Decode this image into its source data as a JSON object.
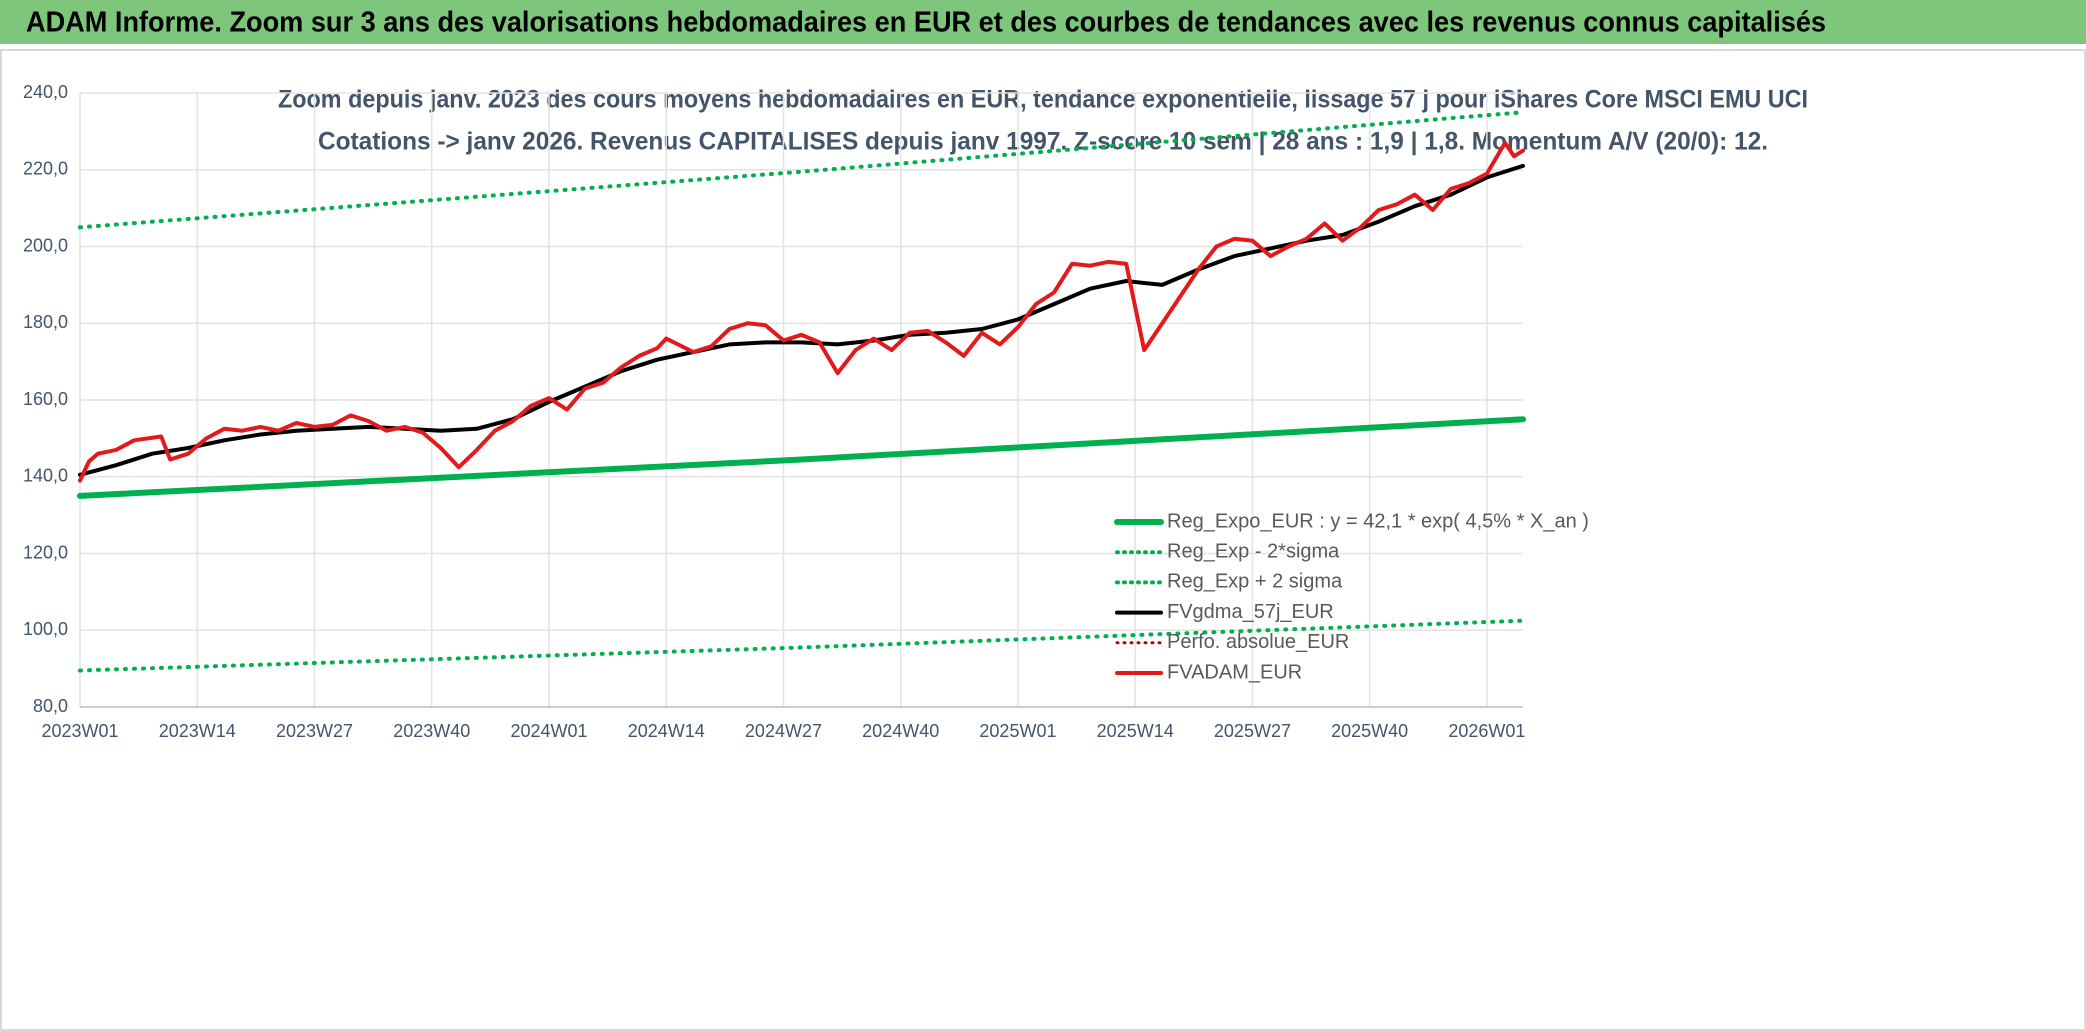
{
  "header": {
    "title": "ADAM Informe. Zoom sur 3 ans des valorisations hebdomadaires en EUR et des courbes de tendances avec les revenus connus capitalisés"
  },
  "chart_data": {
    "type": "line",
    "title": "Zoom depuis janv. 2023 des cours moyens hebdomadaires en EUR, tendance exponentielle, lissage 57 j pour iShares Core MSCI EMU UCI",
    "subtitle": "Cotations -> janv 2026. Revenus CAPITALISES depuis janv 1997. Z-score 10 sem | 28 ans : 1,9 | 1,8. Momentum A/V (20/0): 12.",
    "xlim": [
      0,
      160
    ],
    "xticks": [
      {
        "value": 0,
        "label": "2023W01"
      },
      {
        "value": 13,
        "label": "2023W14"
      },
      {
        "value": 26,
        "label": "2023W27"
      },
      {
        "value": 39,
        "label": "2023W40"
      },
      {
        "value": 52,
        "label": "2024W01"
      },
      {
        "value": 65,
        "label": "2024W14"
      },
      {
        "value": 78,
        "label": "2024W27"
      },
      {
        "value": 91,
        "label": "2024W40"
      },
      {
        "value": 104,
        "label": "2025W01"
      },
      {
        "value": 117,
        "label": "2025W14"
      },
      {
        "value": 130,
        "label": "2025W27"
      },
      {
        "value": 143,
        "label": "2025W40"
      },
      {
        "value": 156,
        "label": "2026W01"
      }
    ],
    "ylim": [
      80,
      240
    ],
    "yticks": [
      {
        "value": 80,
        "label": "80,0"
      },
      {
        "value": 100,
        "label": "100,0"
      },
      {
        "value": 120,
        "label": "120,0"
      },
      {
        "value": 140,
        "label": "140,0"
      },
      {
        "value": 160,
        "label": "160,0"
      },
      {
        "value": 180,
        "label": "180,0"
      },
      {
        "value": 200,
        "label": "200,0"
      },
      {
        "value": 220,
        "label": "220,0"
      },
      {
        "value": 240,
        "label": "240,0"
      }
    ],
    "grid": true,
    "legend": "lower right",
    "series": [
      {
        "name": "Reg_Expo_EUR : y = 42,1 * exp( 4,5% *  X_an )",
        "color": "#00b050",
        "style": "solid",
        "width": 6,
        "x": [
          0,
          80,
          160
        ],
        "values": [
          135,
          144.5,
          155
        ]
      },
      {
        "name": "Reg_Exp - 2*sigma",
        "color": "#00b050",
        "style": "dotted",
        "width": 4,
        "x": [
          0,
          80,
          160
        ],
        "values": [
          89.5,
          95.5,
          102.5
        ]
      },
      {
        "name": "Reg_Exp + 2 sigma",
        "color": "#00b050",
        "style": "dotted",
        "width": 4,
        "x": [
          0,
          80,
          160
        ],
        "values": [
          205,
          219.5,
          235
        ]
      },
      {
        "name": "FVgdma_57j_EUR",
        "color": "#000000",
        "style": "solid",
        "width": 4,
        "x": [
          0,
          4,
          8,
          12,
          16,
          20,
          24,
          28,
          32,
          36,
          40,
          44,
          48,
          52,
          56,
          60,
          64,
          68,
          72,
          76,
          80,
          84,
          88,
          92,
          96,
          100,
          104,
          108,
          112,
          116,
          118,
          120,
          124,
          128,
          132,
          136,
          140,
          144,
          148,
          152,
          156,
          160
        ],
        "values": [
          140.5,
          143,
          146,
          147.5,
          149.5,
          151,
          152,
          152.5,
          153,
          152.5,
          152,
          152.5,
          155,
          159.5,
          163.5,
          167.5,
          170.5,
          172.5,
          174.5,
          175,
          175,
          174.5,
          175.5,
          177,
          177.5,
          178.5,
          181,
          185,
          189,
          191,
          190.5,
          190,
          194,
          197.5,
          199.5,
          201.5,
          203,
          206.5,
          210.5,
          213.5,
          218,
          221
        ]
      },
      {
        "name": "Perfo. absolue_EUR",
        "color": "#c00000",
        "style": "dotted",
        "width": 3,
        "x": [],
        "values": []
      },
      {
        "name": "FVADAM_EUR",
        "color": "#e31a1c",
        "style": "solid",
        "width": 4,
        "x": [
          0,
          1,
          2,
          4,
          6,
          9,
          10,
          12,
          14,
          16,
          18,
          20,
          22,
          24,
          26,
          28,
          30,
          32,
          34,
          36,
          38,
          40,
          42,
          44,
          46,
          48,
          50,
          52,
          54,
          56,
          58,
          60,
          62,
          64,
          65,
          68,
          70,
          72,
          74,
          76,
          78,
          80,
          82,
          84,
          86,
          88,
          90,
          92,
          94,
          96,
          98,
          100,
          102,
          104,
          106,
          108,
          110,
          112,
          114,
          116,
          118,
          120,
          122,
          124,
          126,
          128,
          130,
          132,
          134,
          136,
          138,
          140,
          142,
          144,
          146,
          148,
          150,
          152,
          154,
          156,
          158,
          159,
          160
        ],
        "values": [
          139,
          144,
          146,
          147,
          149.5,
          150.5,
          144.5,
          146,
          150,
          152.5,
          152,
          153,
          152,
          154,
          153,
          153.5,
          156,
          154.5,
          152,
          153,
          151.5,
          147.5,
          142.5,
          147,
          152,
          154.5,
          158.5,
          160.5,
          157.5,
          163,
          164.5,
          168.5,
          171.5,
          173.5,
          176,
          172.5,
          174,
          178.5,
          180,
          179.5,
          175.5,
          177,
          175,
          167,
          173,
          176,
          173,
          177.5,
          178,
          175,
          171.5,
          177.5,
          174.5,
          179,
          185,
          188,
          195.5,
          195,
          196,
          195.5,
          173,
          180,
          187,
          194,
          200,
          202,
          201.5,
          197.5,
          200,
          202,
          206,
          201.5,
          205,
          209.5,
          211,
          213.5,
          209.5,
          215,
          216.5,
          219,
          227,
          223.5,
          225
        ]
      }
    ]
  }
}
